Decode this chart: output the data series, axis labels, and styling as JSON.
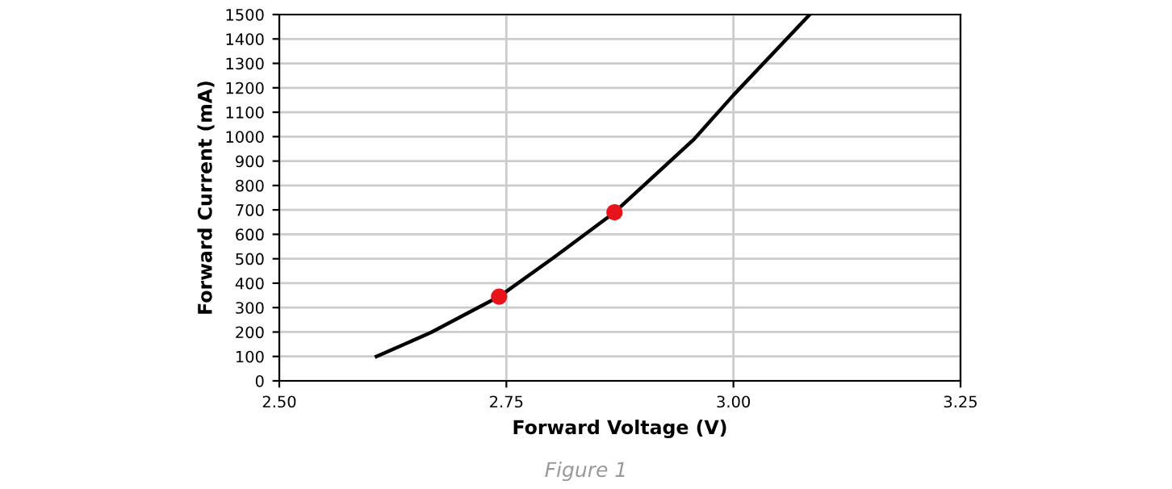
{
  "chart_data": {
    "type": "line",
    "xlabel": "Forward Voltage (V)",
    "ylabel": "Forward Current (mA)",
    "series": [
      {
        "color": "#000000",
        "x": [
          2.607,
          2.667,
          2.742,
          2.803,
          2.869,
          2.957,
          3.0,
          3.084
        ],
        "values": [
          100,
          198,
          345,
          507,
          690,
          991,
          1170,
          1500
        ]
      },
      {
        "type": "scatter",
        "color": "#e8141c",
        "x": [
          2.742,
          2.869
        ],
        "values": [
          345,
          690
        ]
      }
    ],
    "xlim": [
      2.5,
      3.25
    ],
    "xticks": [
      {
        "value": 2.5,
        "label": "2.50"
      },
      {
        "value": 2.75,
        "label": "2.75"
      },
      {
        "value": 3.0,
        "label": "3.00"
      },
      {
        "value": 3.25,
        "label": "3.25"
      }
    ],
    "ylim": [
      0,
      1500
    ],
    "yticks": [
      0,
      100,
      200,
      300,
      400,
      500,
      600,
      700,
      800,
      900,
      1000,
      1100,
      1200,
      1300,
      1400,
      1500
    ],
    "grid": true,
    "annotations": [
      "Figure 1"
    ]
  }
}
